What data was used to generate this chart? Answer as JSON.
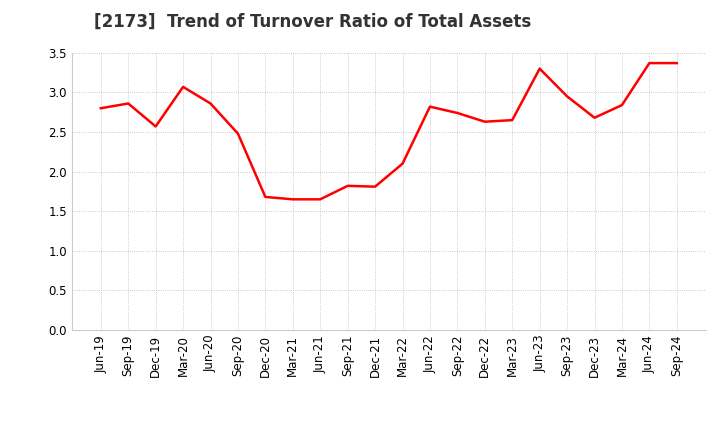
{
  "title": "[2173]  Trend of Turnover Ratio of Total Assets",
  "x_labels": [
    "Jun-19",
    "Sep-19",
    "Dec-19",
    "Mar-20",
    "Jun-20",
    "Sep-20",
    "Dec-20",
    "Mar-21",
    "Jun-21",
    "Sep-21",
    "Dec-21",
    "Mar-22",
    "Jun-22",
    "Sep-22",
    "Dec-22",
    "Mar-23",
    "Jun-23",
    "Sep-23",
    "Dec-23",
    "Mar-24",
    "Jun-24",
    "Sep-24"
  ],
  "values": [
    2.8,
    2.86,
    2.57,
    3.07,
    2.86,
    2.48,
    1.68,
    1.65,
    1.65,
    1.82,
    1.81,
    2.1,
    2.82,
    2.74,
    2.63,
    2.65,
    3.3,
    2.95,
    2.68,
    2.84,
    3.37,
    3.37
  ],
  "line_color": "#ff0000",
  "line_width": 1.8,
  "ylim": [
    0.0,
    3.5
  ],
  "yticks": [
    0.0,
    0.5,
    1.0,
    1.5,
    2.0,
    2.5,
    3.0,
    3.5
  ],
  "grid_color": "#bbbbbb",
  "grid_linestyle": "dotted",
  "background_color": "#ffffff",
  "title_fontsize": 12,
  "tick_fontsize": 8.5,
  "title_color": "#333333"
}
